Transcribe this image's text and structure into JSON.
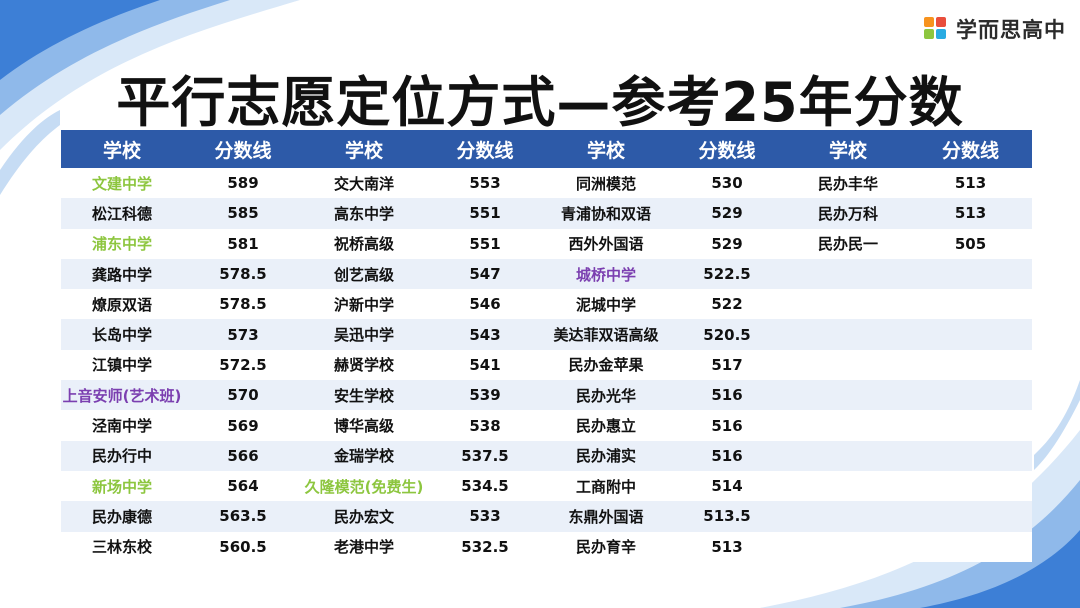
{
  "brand": {
    "name": "学而思高中"
  },
  "title": "平行志愿定位方式—参考25年分数",
  "table": {
    "headers": [
      "学校",
      "分数线",
      "学校",
      "分数线",
      "学校",
      "分数线",
      "学校",
      "分数线"
    ],
    "rows": [
      [
        {
          "t": "文建中学",
          "c": "green"
        },
        {
          "t": "589"
        },
        {
          "t": "交大南洋"
        },
        {
          "t": "553"
        },
        {
          "t": "同洲模范"
        },
        {
          "t": "530"
        },
        {
          "t": "民办丰华"
        },
        {
          "t": "513"
        }
      ],
      [
        {
          "t": "松江科德"
        },
        {
          "t": "585"
        },
        {
          "t": "高东中学"
        },
        {
          "t": "551"
        },
        {
          "t": "青浦协和双语"
        },
        {
          "t": "529"
        },
        {
          "t": "民办万科"
        },
        {
          "t": "513"
        }
      ],
      [
        {
          "t": "浦东中学",
          "c": "green"
        },
        {
          "t": "581"
        },
        {
          "t": "祝桥高级"
        },
        {
          "t": "551"
        },
        {
          "t": "西外外国语"
        },
        {
          "t": "529"
        },
        {
          "t": "民办民一"
        },
        {
          "t": "505"
        }
      ],
      [
        {
          "t": "龚路中学"
        },
        {
          "t": "578.5"
        },
        {
          "t": "创艺高级"
        },
        {
          "t": "547"
        },
        {
          "t": "城桥中学",
          "c": "purple"
        },
        {
          "t": "522.5"
        },
        {
          "t": ""
        },
        {
          "t": ""
        }
      ],
      [
        {
          "t": "燎原双语"
        },
        {
          "t": "578.5"
        },
        {
          "t": "沪新中学"
        },
        {
          "t": "546"
        },
        {
          "t": "泥城中学"
        },
        {
          "t": "522"
        },
        {
          "t": ""
        },
        {
          "t": ""
        }
      ],
      [
        {
          "t": "长岛中学"
        },
        {
          "t": "573"
        },
        {
          "t": "吴迅中学"
        },
        {
          "t": "543"
        },
        {
          "t": "美达菲双语高级"
        },
        {
          "t": "520.5"
        },
        {
          "t": ""
        },
        {
          "t": ""
        }
      ],
      [
        {
          "t": "江镇中学"
        },
        {
          "t": "572.5"
        },
        {
          "t": "赫贤学校"
        },
        {
          "t": "541"
        },
        {
          "t": "民办金苹果"
        },
        {
          "t": "517"
        },
        {
          "t": ""
        },
        {
          "t": ""
        }
      ],
      [
        {
          "t": "上音安师(艺术班)",
          "c": "purple"
        },
        {
          "t": "570"
        },
        {
          "t": "安生学校"
        },
        {
          "t": "539"
        },
        {
          "t": "民办光华"
        },
        {
          "t": "516"
        },
        {
          "t": ""
        },
        {
          "t": ""
        }
      ],
      [
        {
          "t": "泾南中学"
        },
        {
          "t": "569"
        },
        {
          "t": "博华高级"
        },
        {
          "t": "538"
        },
        {
          "t": "民办惠立"
        },
        {
          "t": "516"
        },
        {
          "t": ""
        },
        {
          "t": ""
        }
      ],
      [
        {
          "t": "民办行中"
        },
        {
          "t": "566"
        },
        {
          "t": "金瑞学校"
        },
        {
          "t": "537.5"
        },
        {
          "t": "民办浦实"
        },
        {
          "t": "516"
        },
        {
          "t": ""
        },
        {
          "t": ""
        }
      ],
      [
        {
          "t": "新场中学",
          "c": "green"
        },
        {
          "t": "564"
        },
        {
          "t": "久隆模范(免费生)",
          "c": "green"
        },
        {
          "t": "534.5"
        },
        {
          "t": "工商附中"
        },
        {
          "t": "514"
        },
        {
          "t": ""
        },
        {
          "t": ""
        }
      ],
      [
        {
          "t": "民办康德"
        },
        {
          "t": "563.5"
        },
        {
          "t": "民办宏文"
        },
        {
          "t": "533"
        },
        {
          "t": "东鼎外国语"
        },
        {
          "t": "513.5"
        },
        {
          "t": ""
        },
        {
          "t": ""
        }
      ],
      [
        {
          "t": "三林东校"
        },
        {
          "t": "560.5"
        },
        {
          "t": "老港中学"
        },
        {
          "t": "532.5"
        },
        {
          "t": "民办育辛"
        },
        {
          "t": "513"
        },
        {
          "t": ""
        },
        {
          "t": ""
        }
      ]
    ]
  },
  "colors": {
    "header_bg": "#2d5aa8",
    "stripe": "#eaf0f9",
    "highlight_green": "#8dc63f",
    "highlight_purple": "#7b3fb0",
    "decor_blue": "#3d7fd6"
  },
  "icons": {
    "brand_logo": "xueersi-logo-icon"
  }
}
